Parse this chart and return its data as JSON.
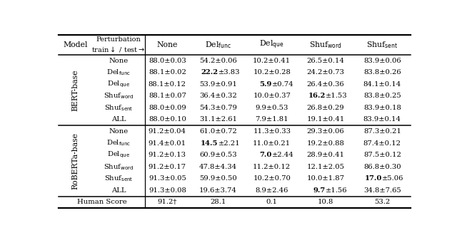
{
  "n_bert": 6,
  "n_roberta": 6,
  "row_labels": [
    "None",
    "Del$_{\\mathrm{func}}$",
    "Del$_{\\mathrm{que}}$",
    "Shuf$_{\\mathrm{word}}$",
    "Shuf$_{\\mathrm{sent}}$",
    "ALL"
  ],
  "bert_data": [
    [
      "88.0±0.03",
      "54.2±0.06",
      "10.2±0.41",
      "26.5±0.14",
      "83.9±0.06"
    ],
    [
      "88.1±0.02",
      "BOLD22.2±3.83",
      "10.2±0.28",
      "24.2±0.73",
      "83.8±0.26"
    ],
    [
      "88.1±0.12",
      "53.9±0.91",
      "BOLD5.9±0.74",
      "26.4±0.36",
      "84.1±0.14"
    ],
    [
      "88.1±0.07",
      "36.4±0.32",
      "10.0±0.37",
      "BOLD16.2±1.53",
      "83.8±0.25"
    ],
    [
      "88.0±0.09",
      "54.3±0.79",
      "9.9±0.53",
      "26.8±0.29",
      "83.9±0.18"
    ],
    [
      "88.0±0.10",
      "31.1±2.61",
      "7.9±1.81",
      "19.1±0.41",
      "83.9±0.14"
    ]
  ],
  "roberta_data": [
    [
      "91.2±0.04",
      "61.0±0.72",
      "11.3±0.33",
      "29.3±0.06",
      "87.3±0.21"
    ],
    [
      "91.4±0.01",
      "BOLD14.5±2.21",
      "11.0±0.21",
      "19.2±0.88",
      "87.4±0.12"
    ],
    [
      "91.2±0.13",
      "60.9±0.53",
      "BOLD7.0±2.44",
      "28.9±0.41",
      "87.5±0.12"
    ],
    [
      "91.2±0.17",
      "47.8±4.34",
      "11.2±0.12",
      "12.1±2.05",
      "86.8±0.30"
    ],
    [
      "91.3±0.05",
      "59.9±0.50",
      "10.2±0.70",
      "10.0±1.87",
      "BOLD17.0±5.06"
    ],
    [
      "91.3±0.08",
      "19.6±3.74",
      "8.9±2.46",
      "BOLD9.7±1.56",
      "34.8±7.65"
    ]
  ],
  "human_data": [
    "91.2†",
    "28.1",
    "0.1",
    "10.8",
    "53.2"
  ],
  "col_headers": [
    "None",
    "Del$_{\\mathrm{func}}$",
    "Del$_{\\mathrm{que}}$",
    "Shuf$_{\\mathrm{word}}$",
    "Shuf$_{\\mathrm{sent}}$"
  ],
  "model_labels": [
    "BERT-base",
    "RoBERTa-base"
  ]
}
